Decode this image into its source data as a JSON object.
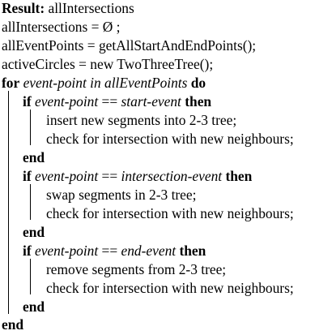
{
  "algorithm": {
    "result_keyword": "Result:",
    "result_text": " allIntersections",
    "init_lines": [
      "allIntersections = Ø ;",
      "allEventPoints = getAllStartAndEndPoints();",
      "activeCircles = new TwoThreeTree();"
    ],
    "for_loop": {
      "for_kw": "for",
      "var": " event-point ",
      "in_kw": "in",
      "collection": " allEventPoints ",
      "do_kw": "do",
      "end_kw": "end"
    },
    "blocks": [
      {
        "if_kw": "if",
        "cond_left": " event-point ",
        "op": "==",
        "cond_right": " start-event ",
        "then_kw": "then",
        "body": [
          "insert new segments into 2-3 tree;",
          "check for intersection with new neighbours;"
        ],
        "end_kw": "end"
      },
      {
        "if_kw": "if",
        "cond_left": " event-point ",
        "op": "==",
        "cond_right": " intersection-event ",
        "then_kw": "then",
        "body": [
          "swap segments in 2-3 tree;",
          "check for intersection with new neighbours;"
        ],
        "end_kw": "end"
      },
      {
        "if_kw": "if",
        "cond_left": " event-point ",
        "op": "==",
        "cond_right": " end-event ",
        "then_kw": "then",
        "body": [
          "remove segments from 2-3 tree;",
          "check for intersection with new neighbours;"
        ],
        "end_kw": "end"
      }
    ]
  }
}
